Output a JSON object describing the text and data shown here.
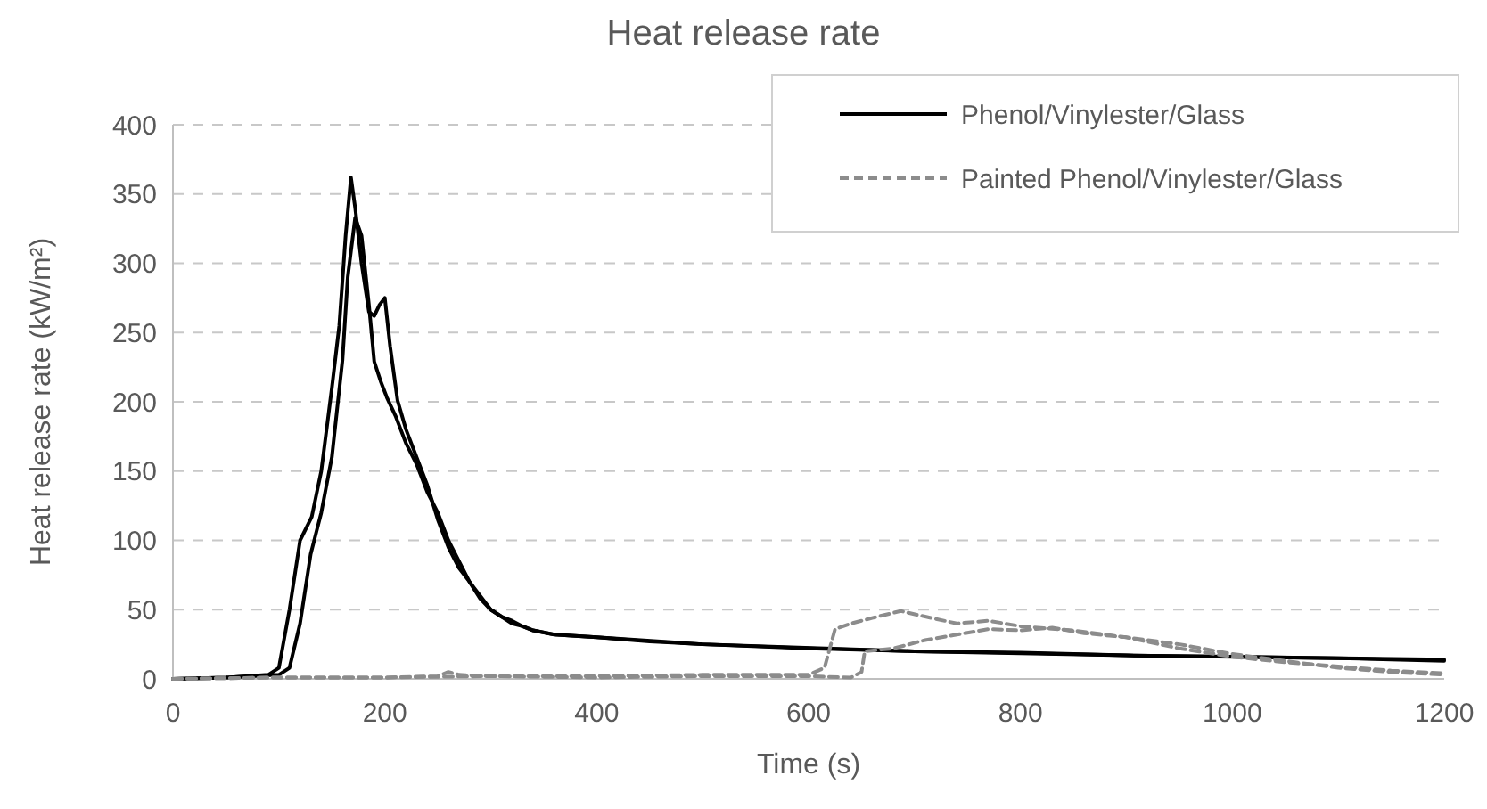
{
  "chart_data": {
    "type": "line",
    "title": "Heat release rate",
    "xlabel": "Time (s)",
    "ylabel": "Heat release rate (kW/m²)",
    "xlim": [
      0,
      1200
    ],
    "xticks": [
      0,
      200,
      400,
      600,
      800,
      1000,
      1200
    ],
    "ylim": [
      0,
      400
    ],
    "yticks": [
      0,
      50,
      100,
      150,
      200,
      250,
      300,
      350,
      400
    ],
    "grid": "y",
    "legend": "top right",
    "series": [
      {
        "name": "Phenol/Vinylester/Glass",
        "color": "#000000",
        "line_style": "solid",
        "x": [
          0,
          50,
          90,
          100,
          110,
          120,
          131,
          140,
          150,
          157,
          163,
          168,
          172,
          178,
          185,
          190,
          195,
          200,
          205,
          212,
          220,
          230,
          240,
          250,
          260,
          270,
          280,
          290,
          300,
          310,
          320,
          330,
          340,
          360,
          400,
          450,
          500,
          600,
          700,
          800,
          900,
          1000,
          1100,
          1150,
          1200
        ],
        "values": [
          0,
          1,
          3,
          8,
          50,
          100,
          117,
          150,
          210,
          255,
          320,
          362,
          340,
          300,
          265,
          262,
          270,
          275,
          240,
          201,
          180,
          160,
          140,
          115,
          95,
          80,
          70,
          58,
          50,
          45,
          42,
          38,
          35,
          32,
          30,
          27,
          25,
          22,
          20,
          19,
          17,
          16,
          15,
          14,
          13
        ]
      },
      {
        "name": null,
        "color": "#000000",
        "line_style": "solid",
        "x": [
          0,
          50,
          100,
          110,
          120,
          130,
          140,
          150,
          160,
          165,
          172,
          178,
          185,
          190,
          196,
          202,
          210,
          220,
          230,
          240,
          250,
          260,
          270,
          280,
          290,
          300,
          310,
          320,
          330,
          340,
          360,
          400,
          500,
          700,
          900,
          1100,
          1200
        ],
        "values": [
          0,
          1,
          3,
          8,
          40,
          90,
          120,
          160,
          230,
          290,
          333,
          320,
          270,
          229,
          215,
          203,
          190,
          170,
          155,
          135,
          120,
          100,
          85,
          70,
          60,
          50,
          45,
          40,
          38,
          35,
          32,
          30,
          25,
          20,
          17,
          15,
          14
        ]
      },
      {
        "name": "Painted Phenol/Vinylester/Glass",
        "color": "#8c8c8c",
        "line_style": "dashed",
        "x": [
          0,
          100,
          200,
          250,
          260,
          270,
          300,
          400,
          500,
          600,
          615,
          625,
          640,
          660,
          687,
          710,
          740,
          770,
          800,
          850,
          900,
          950,
          1000,
          1050,
          1100,
          1150,
          1200
        ],
        "values": [
          0,
          1,
          1,
          2,
          5,
          3,
          2,
          2,
          3,
          3,
          8,
          36,
          40,
          44,
          49,
          45,
          40,
          42,
          38,
          35,
          30,
          25,
          18,
          13,
          8,
          5,
          3
        ]
      },
      {
        "name": null,
        "color": "#8c8c8c",
        "line_style": "dashed",
        "x": [
          0,
          100,
          200,
          300,
          400,
          500,
          600,
          640,
          650,
          653,
          680,
          710,
          740,
          770,
          800,
          830,
          860,
          900,
          950,
          1000,
          1050,
          1100,
          1150,
          1200
        ],
        "values": [
          0,
          1,
          1,
          2,
          1,
          2,
          2,
          1,
          5,
          20,
          22,
          28,
          32,
          36,
          35,
          37,
          33,
          30,
          22,
          16,
          12,
          9,
          6,
          4
        ]
      }
    ]
  }
}
